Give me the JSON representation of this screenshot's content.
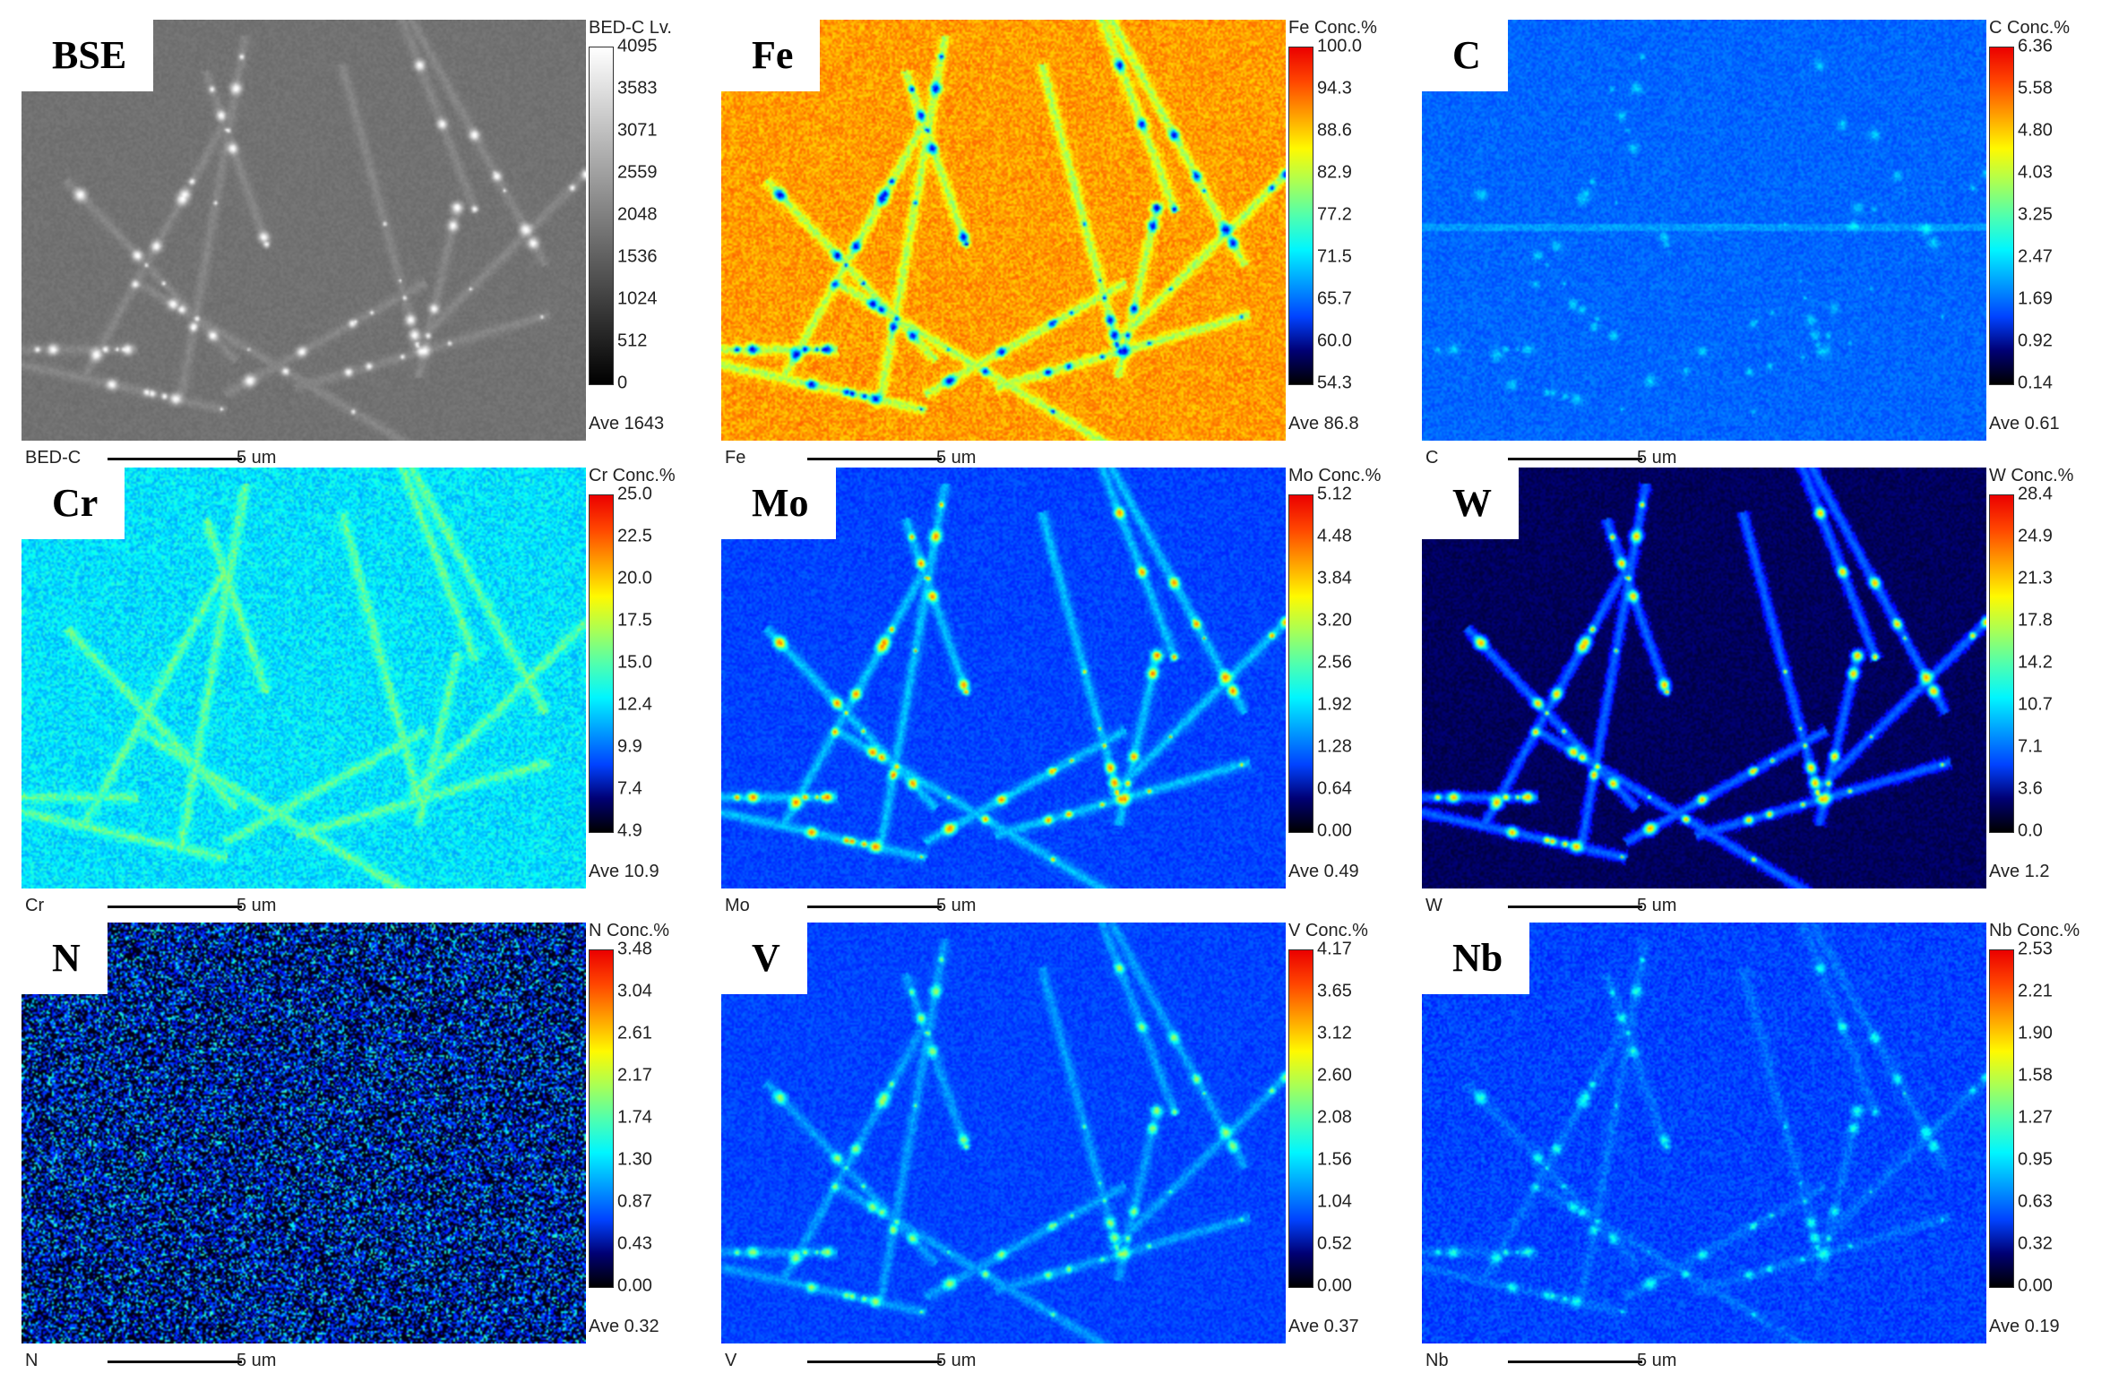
{
  "panels": [
    {
      "label": "BSE",
      "legend_title": "BED-C  Lv.",
      "ticks": [
        "4095",
        "3583",
        "3071",
        "2559",
        "2048",
        "1536",
        "1024",
        "512",
        "0"
      ],
      "ave": "Ave 1643",
      "scale_name": "BED-C",
      "scale_text": "5 um",
      "colormap": "gray",
      "pattern": "bse",
      "base": 0.5
    },
    {
      "label": "Fe",
      "legend_title": "Fe  Conc.%",
      "ticks": [
        "100.0",
        "94.3",
        "88.6",
        "82.9",
        "77.2",
        "71.5",
        "65.7",
        "60.0",
        "54.3"
      ],
      "ave": "Ave 86.8",
      "scale_name": "Fe",
      "scale_text": "5 um",
      "colormap": "jet",
      "pattern": "fe",
      "base": 0.72
    },
    {
      "label": "C",
      "legend_title": "C  Conc.%",
      "ticks": [
        "6.36",
        "5.58",
        "4.80",
        "4.03",
        "3.25",
        "2.47",
        "1.69",
        "0.92",
        "0.14"
      ],
      "ave": "Ave 0.61",
      "scale_name": "C",
      "scale_text": "5 um",
      "colormap": "jet",
      "pattern": "c",
      "base": 0.16
    },
    {
      "label": "Cr",
      "legend_title": "Cr  Conc.%",
      "ticks": [
        "25.0",
        "22.5",
        "20.0",
        "17.5",
        "15.0",
        "12.4",
        "9.9",
        "7.4",
        "4.9"
      ],
      "ave": "Ave 10.9",
      "scale_name": "Cr",
      "scale_text": "5 um",
      "colormap": "jet",
      "pattern": "cr",
      "base": 0.35
    },
    {
      "label": "Mo",
      "legend_title": "Mo  Conc.%",
      "ticks": [
        "5.12",
        "4.48",
        "3.84",
        "3.20",
        "2.56",
        "1.92",
        "1.28",
        "0.64",
        "0.00"
      ],
      "ave": "Ave 0.49",
      "scale_name": "Mo",
      "scale_text": "5 um",
      "colormap": "jet",
      "pattern": "mo",
      "base": 0.14
    },
    {
      "label": "W",
      "legend_title": "W  Conc.%",
      "ticks": [
        "28.4",
        "24.9",
        "21.3",
        "17.8",
        "14.2",
        "10.7",
        "7.1",
        "3.6",
        "0.0"
      ],
      "ave": "Ave 1.2",
      "scale_name": "W",
      "scale_text": "5 um",
      "colormap": "jet",
      "pattern": "w",
      "base": 0.08
    },
    {
      "label": "N",
      "legend_title": "N  Conc.%",
      "ticks": [
        "3.48",
        "3.04",
        "2.61",
        "2.17",
        "1.74",
        "1.30",
        "0.87",
        "0.43",
        "0.00"
      ],
      "ave": "Ave 0.32",
      "scale_name": "N",
      "scale_text": "5 um",
      "colormap": "jet",
      "pattern": "n",
      "base": 0.1
    },
    {
      "label": "V",
      "legend_title": "V  Conc.%",
      "ticks": [
        "4.17",
        "3.65",
        "3.12",
        "2.60",
        "2.08",
        "1.56",
        "1.04",
        "0.52",
        "0.00"
      ],
      "ave": "Ave 0.37",
      "scale_name": "V",
      "scale_text": "5 um",
      "colormap": "jet",
      "pattern": "v",
      "base": 0.15
    },
    {
      "label": "Nb",
      "legend_title": "Nb  Conc.%",
      "ticks": [
        "2.53",
        "2.21",
        "1.90",
        "1.58",
        "1.27",
        "0.95",
        "0.63",
        "0.32",
        "0.00"
      ],
      "ave": "Ave 0.19",
      "scale_name": "Nb",
      "scale_text": "5 um",
      "colormap": "jet",
      "pattern": "nb",
      "base": 0.15
    }
  ]
}
